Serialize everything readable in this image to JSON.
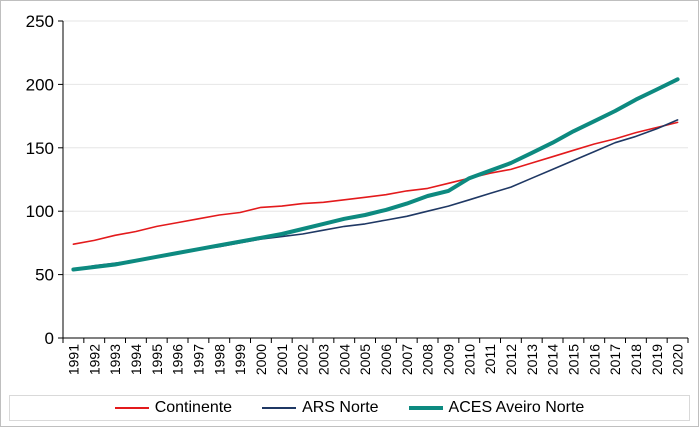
{
  "chart_data": {
    "type": "line",
    "title": "",
    "xlabel": "",
    "ylabel": "",
    "ylim": [
      0,
      250
    ],
    "yticks": [
      0,
      50,
      100,
      150,
      200,
      250
    ],
    "grid": true,
    "legend": "bottom",
    "x": [
      "1991",
      "1992",
      "1993",
      "1994",
      "1995",
      "1996",
      "1997",
      "1998",
      "1999",
      "2000",
      "2001",
      "2002",
      "2003",
      "2004",
      "2005",
      "2006",
      "2007",
      "2008",
      "2009",
      "2010",
      "2011",
      "2012",
      "2013",
      "2014",
      "2015",
      "2016",
      "2017",
      "2018",
      "2019",
      "2020"
    ],
    "series": [
      {
        "name": "Continente",
        "color": "#e31a1c",
        "width": 1.6,
        "values": [
          74,
          77,
          81,
          84,
          88,
          91,
          94,
          97,
          99,
          103,
          104,
          106,
          107,
          109,
          111,
          113,
          116,
          118,
          122,
          126,
          130,
          133,
          138,
          143,
          148,
          153,
          157,
          162,
          166,
          170
        ]
      },
      {
        "name": "ARS Norte",
        "color": "#1f3864",
        "width": 1.6,
        "values": [
          54,
          57,
          59,
          61,
          64,
          67,
          70,
          72,
          75,
          78,
          80,
          82,
          85,
          88,
          90,
          93,
          96,
          100,
          104,
          109,
          114,
          119,
          126,
          133,
          140,
          147,
          154,
          159,
          165,
          172
        ]
      },
      {
        "name": "ACES Aveiro Norte",
        "color": "#0d8a80",
        "width": 4,
        "values": [
          54,
          56,
          58,
          61,
          64,
          67,
          70,
          73,
          76,
          79,
          82,
          86,
          90,
          94,
          97,
          101,
          106,
          112,
          116,
          126,
          132,
          138,
          146,
          154,
          163,
          171,
          179,
          188,
          196,
          204
        ]
      }
    ]
  }
}
